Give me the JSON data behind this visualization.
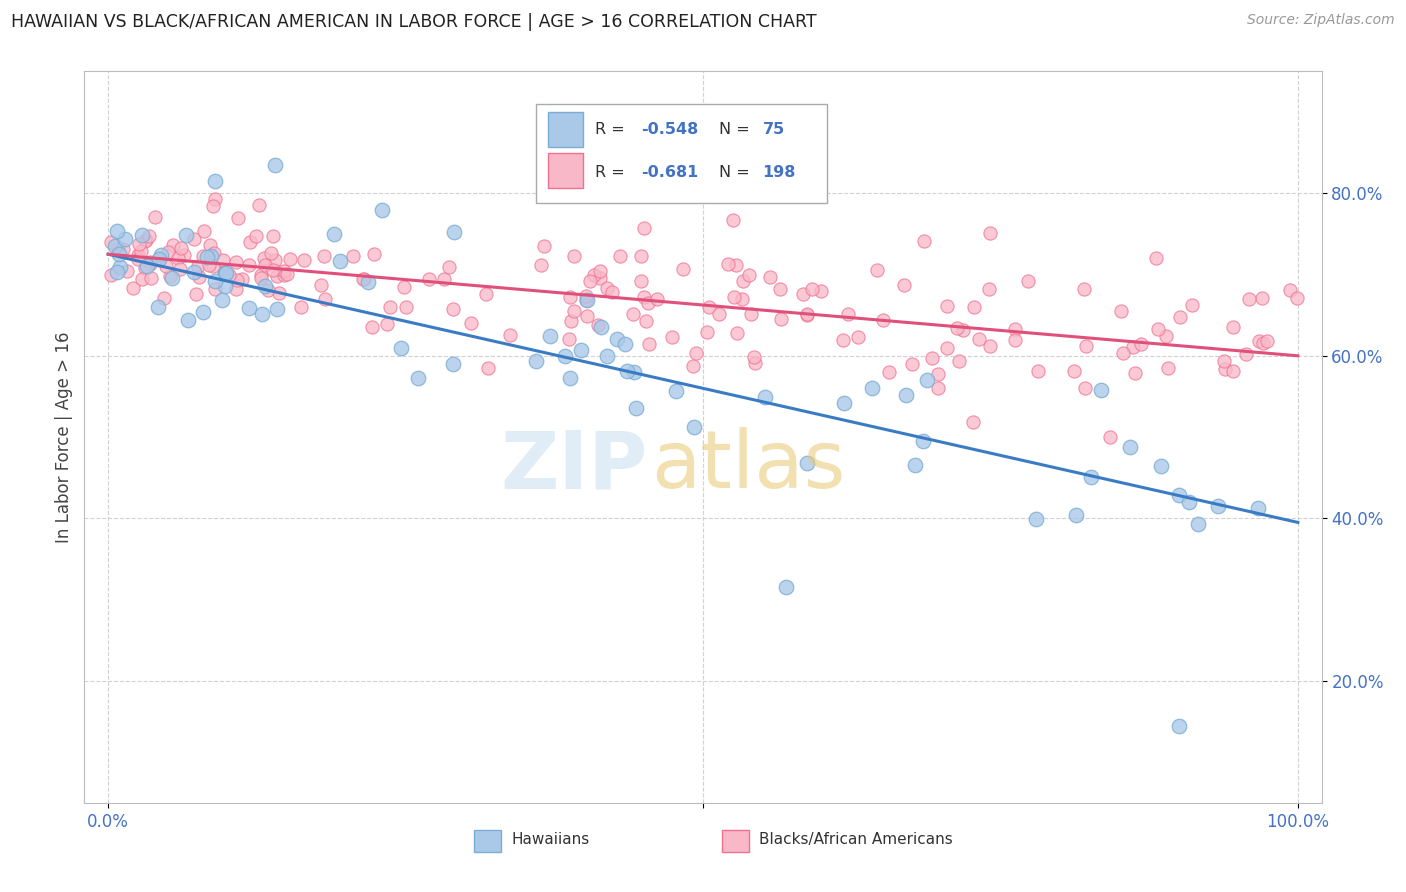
{
  "title": "HAWAIIAN VS BLACK/AFRICAN AMERICAN IN LABOR FORCE | AGE > 16 CORRELATION CHART",
  "source": "Source: ZipAtlas.com",
  "ylabel": "In Labor Force | Age > 16",
  "xlim": [
    -0.02,
    1.02
  ],
  "ylim": [
    0.05,
    0.95
  ],
  "xtick_positions": [
    0.0,
    0.5,
    1.0
  ],
  "xtick_labels": [
    "0.0%",
    "",
    "100.0%"
  ],
  "ytick_positions": [
    0.2,
    0.4,
    0.6,
    0.8
  ],
  "ytick_labels": [
    "20.0%",
    "40.0%",
    "60.0%",
    "80.0%"
  ],
  "hawaiian_R": -0.548,
  "hawaiian_N": 75,
  "black_R": -0.681,
  "black_N": 198,
  "blue_scatter_color": "#aac8e8",
  "blue_edge_color": "#7aadd4",
  "pink_scatter_color": "#f9b8c8",
  "pink_edge_color": "#f07090",
  "blue_line_color": "#3a7cc4",
  "pink_line_color": "#e0507a",
  "title_color": "#222222",
  "source_color": "#999999",
  "grid_color": "#cccccc",
  "legend_label_blue": "Hawaiians",
  "legend_label_pink": "Blacks/African Americans",
  "blue_line_start_y": 0.725,
  "blue_line_end_y": 0.395,
  "pink_line_start_y": 0.725,
  "pink_line_end_y": 0.6,
  "watermark_zip_color": "#c8dff0",
  "watermark_atlas_color": "#e8c870",
  "tick_color": "#4472c4"
}
